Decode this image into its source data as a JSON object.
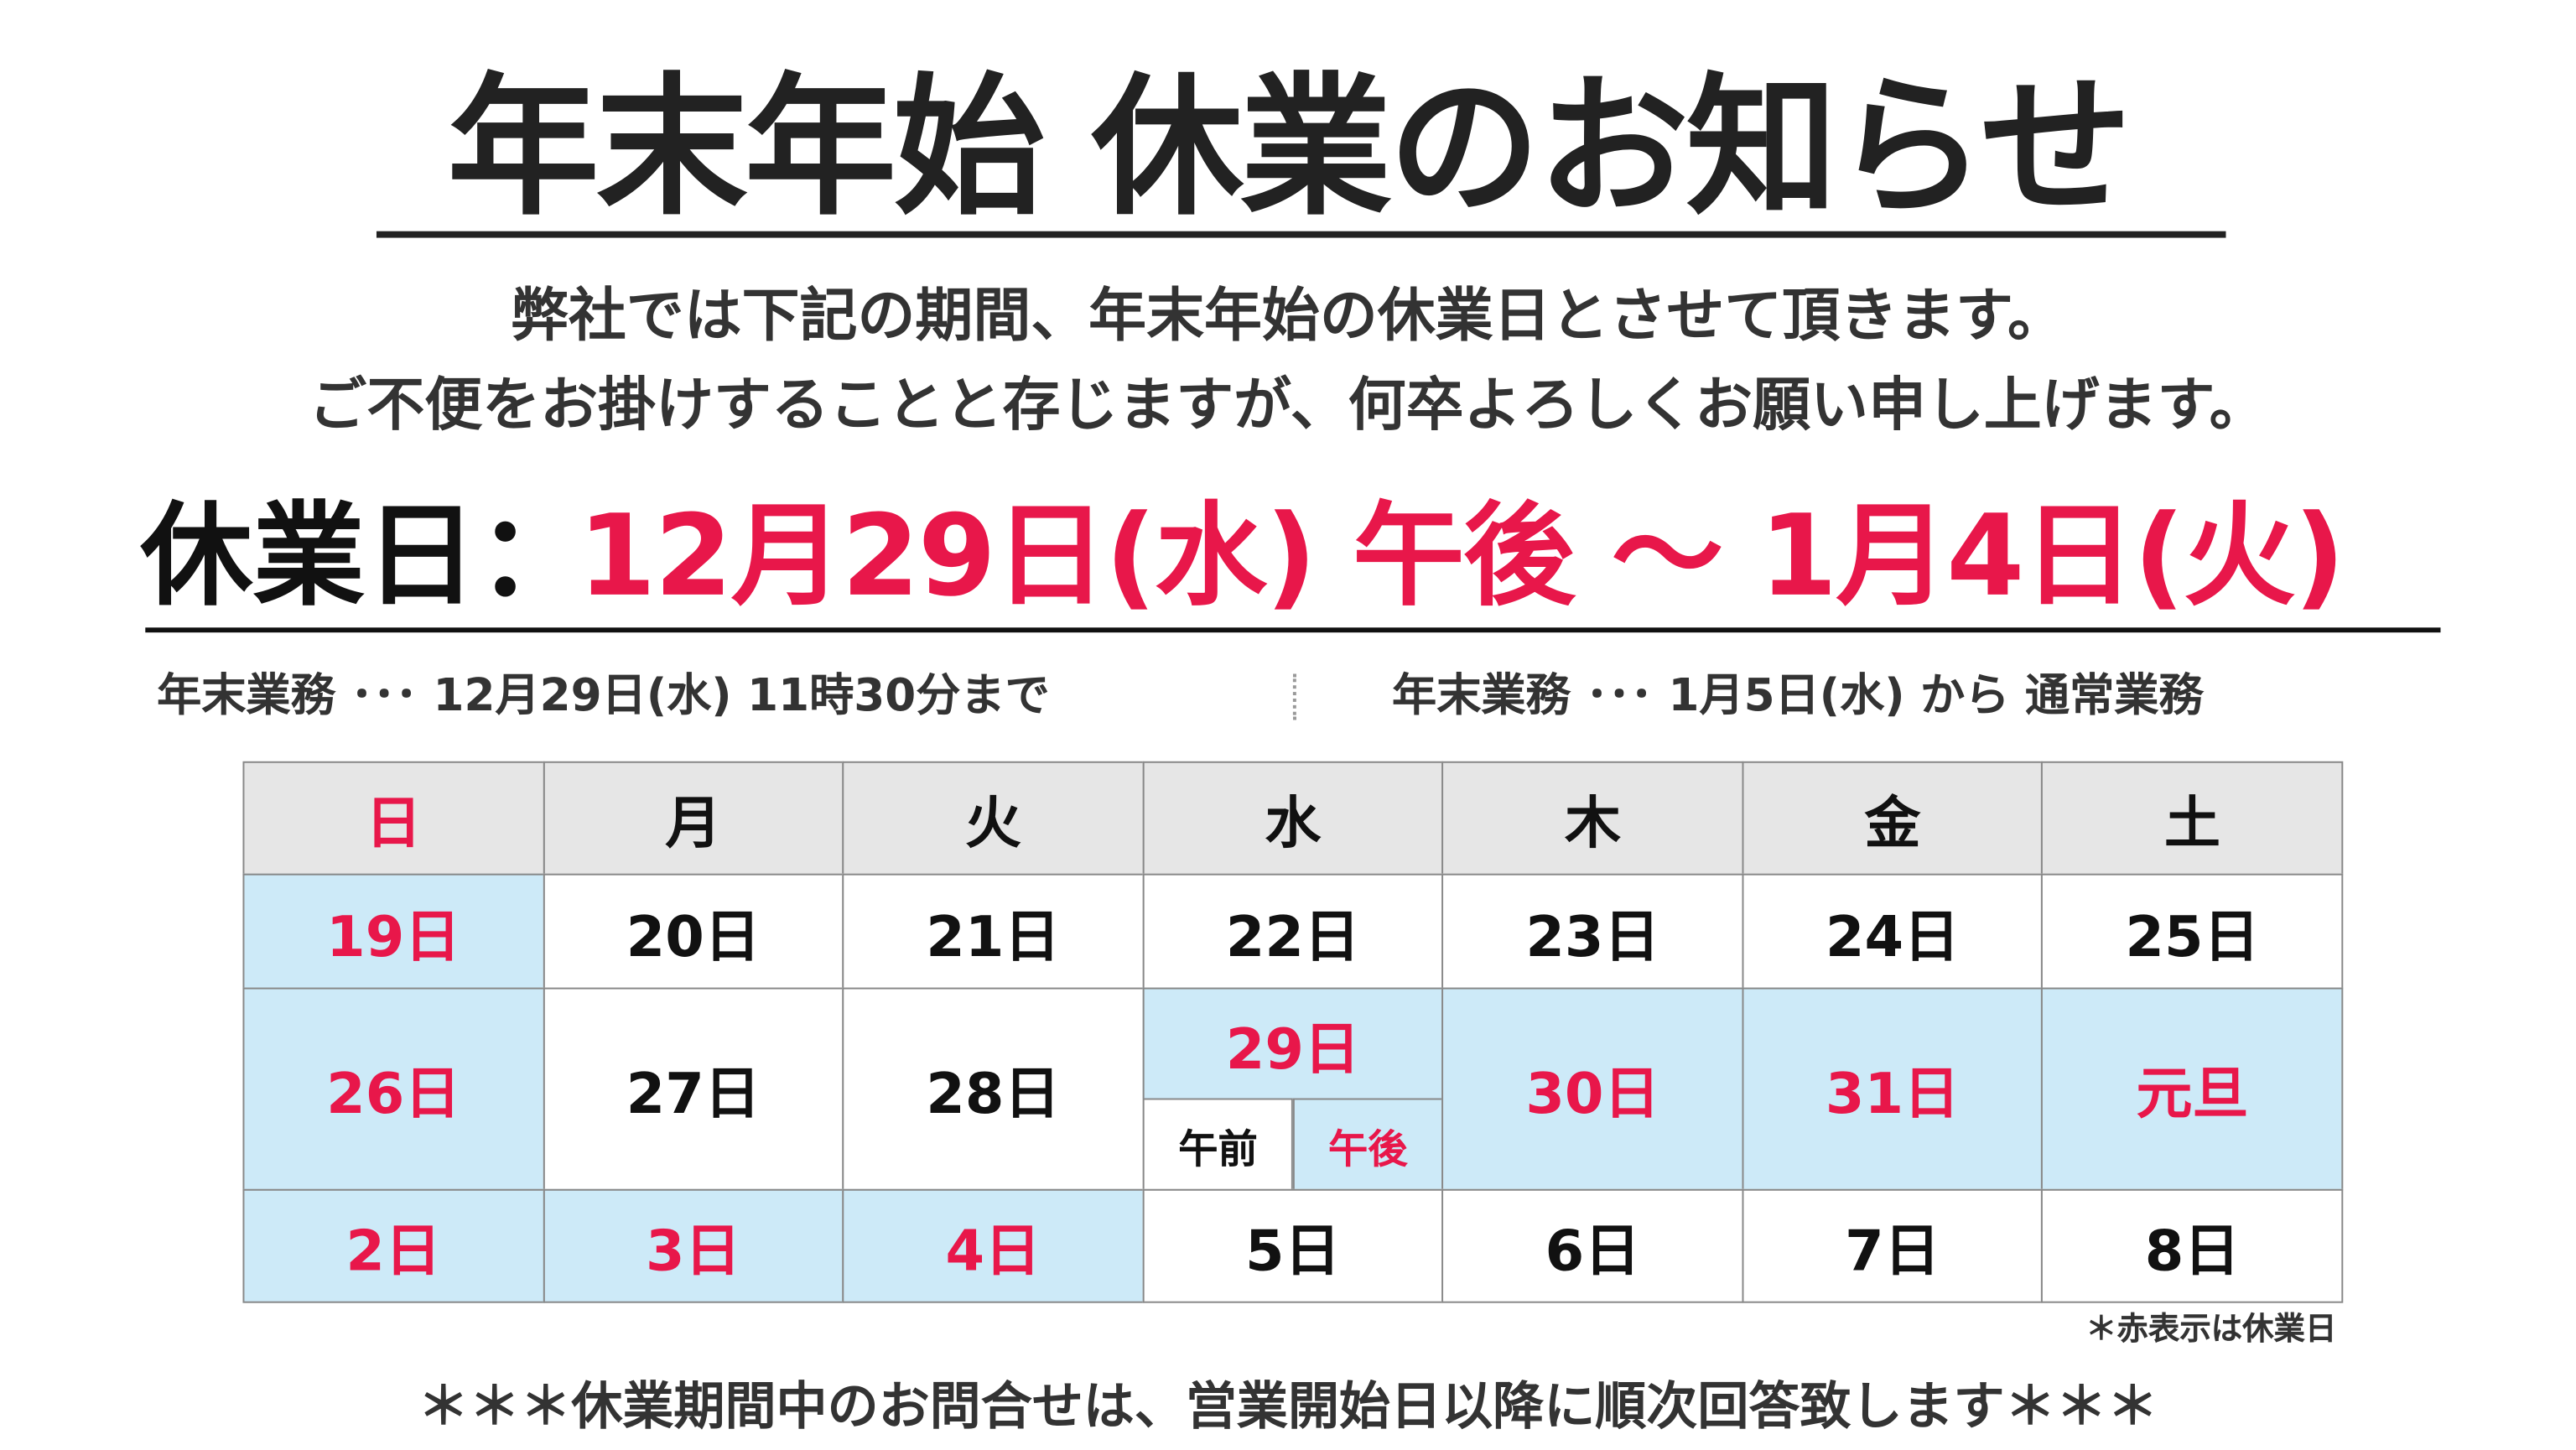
{
  "title": "年末年始 休業のお知らせ",
  "intro": [
    "弊社では下記の期間、年末年始の休業日とさせて頂きます。",
    "ご不便をお掛けすることと存じますが、何卒よろしくお願い申し上げます。"
  ],
  "closure": {
    "label": "休業日：",
    "period": "12月29日(水) 午後 ～ 1月4日(火)"
  },
  "notes": [
    "年末業務 ･･･ 12月29日(水) 11時30分まで",
    "年末業務 ･･･ 1月5日(水) から 通常業務"
  ],
  "calendar": {
    "weekdays": [
      "日",
      "月",
      "火",
      "水",
      "木",
      "金",
      "土"
    ],
    "rows": [
      [
        "19日",
        "20日",
        "21日",
        "22日",
        "23日",
        "24日",
        "25日"
      ],
      [
        "26日",
        "27日",
        "28日",
        "29日",
        "30日",
        "31日",
        "元旦"
      ],
      [
        "2日",
        "3日",
        "4日",
        "5日",
        "6日",
        "7日",
        "8日"
      ]
    ],
    "split": [
      "午前",
      "午後"
    ]
  },
  "legend": "＊赤表示は休業日",
  "footer": "＊＊＊休業期間中のお問合せは、営業開始日以降に順次回答致します＊＊＊"
}
